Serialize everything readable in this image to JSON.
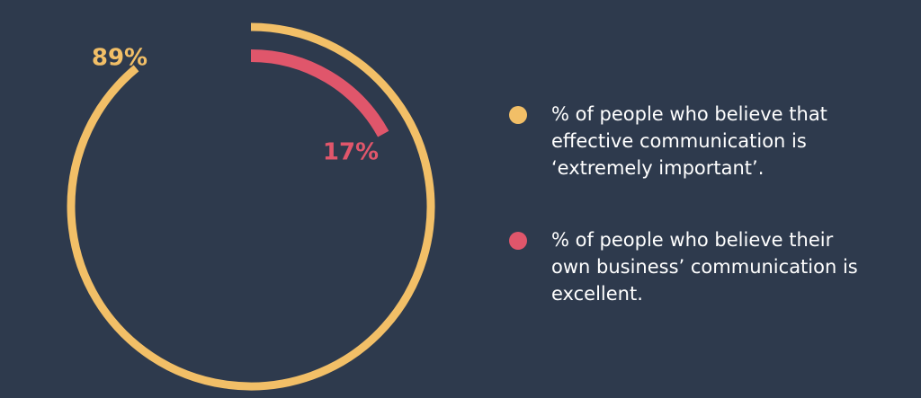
{
  "chart_data": {
    "type": "radial",
    "ylim": [
      0,
      100
    ],
    "series": [
      {
        "name": "% of people who believe that effective communication is ‘extremely important’.",
        "color": "#f2bf67",
        "values": [
          89
        ],
        "value_labels": [
          "89%"
        ]
      },
      {
        "name": "% of people who believe their own business’ communication is excellent.",
        "color": "#e0566b",
        "values": [
          17
        ],
        "value_labels": [
          "17%"
        ]
      }
    ]
  }
}
